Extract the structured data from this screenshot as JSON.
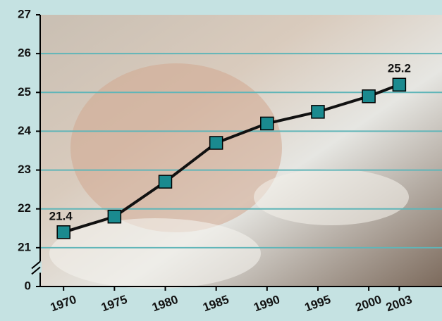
{
  "chart_data": {
    "type": "line",
    "x": [
      1970,
      1975,
      1980,
      1985,
      1990,
      1995,
      2000,
      2003
    ],
    "series": [
      {
        "color": "#1a8a8f",
        "values": [
          21.4,
          21.8,
          22.7,
          23.7,
          24.2,
          24.5,
          24.9,
          25.2
        ],
        "value_labels": [
          "21.4",
          null,
          null,
          null,
          null,
          null,
          null,
          "25.2"
        ]
      }
    ],
    "xlim": [
      1967.7,
      2007.2
    ],
    "xticks": [
      1970,
      1975,
      1980,
      1985,
      1990,
      1995,
      2000,
      2003
    ],
    "ylim": [
      20,
      27
    ],
    "yticks": [
      {
        "value": 20,
        "label": "0"
      },
      21,
      22,
      23,
      24,
      25,
      26,
      27
    ],
    "axis_break": true,
    "grid": true
  }
}
